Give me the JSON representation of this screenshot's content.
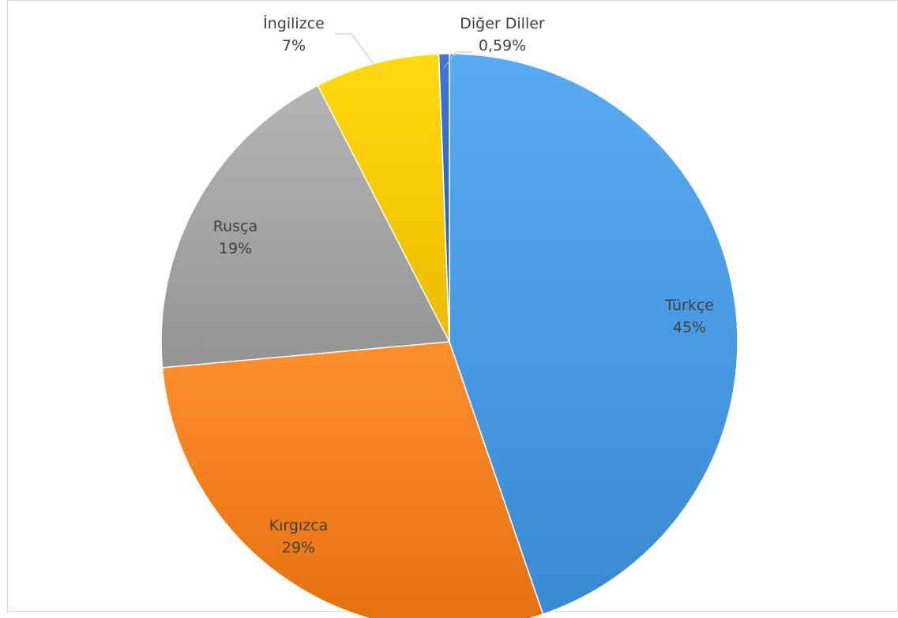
{
  "chart_data": {
    "type": "pie",
    "title": "",
    "slices": [
      {
        "label": "Türkçe",
        "value_label": "45%",
        "value": 45.0,
        "color": "#4a9de4"
      },
      {
        "label": "Kırgızca",
        "value_label": "29%",
        "value": 29.0,
        "color": "#f7811f"
      },
      {
        "label": "Rusça",
        "value_label": "19%",
        "value": 19.0,
        "color": "#a6a6a6"
      },
      {
        "label": "İngilizce",
        "value_label": "7%",
        "value": 7.0,
        "color": "#ffcc00"
      },
      {
        "label": "Diğer Diller",
        "value_label": "0,59%",
        "value": 0.59,
        "color": "#2f6ac8"
      }
    ]
  }
}
